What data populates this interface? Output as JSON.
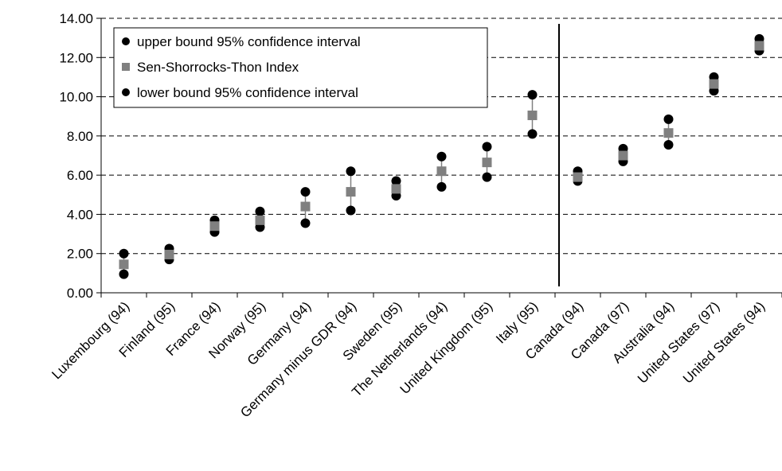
{
  "chart_data": {
    "type": "scatter",
    "categories": [
      "Luxembourg (94)",
      "Finland (95)",
      "France (94)",
      "Norway (95)",
      "Germany (94)",
      "Germany minus GDR (94)",
      "Sweden (95)",
      "The Netherlands (94)",
      "United Kingdom (95)",
      "Italy (95)",
      "Canada (94)",
      "Canada (97)",
      "Australia (94)",
      "United States (97)",
      "United States (94)"
    ],
    "series": [
      {
        "name": "upper bound 95% confidence interval",
        "color": "#000000",
        "marker": "circle",
        "values": [
          2.0,
          2.25,
          3.7,
          4.15,
          5.15,
          6.2,
          5.7,
          6.95,
          7.45,
          10.1,
          6.2,
          7.35,
          8.85,
          11.0,
          12.95
        ]
      },
      {
        "name": "Sen-Shorrocks-Thon Index",
        "color": "#808080",
        "marker": "square",
        "values": [
          1.45,
          1.95,
          3.4,
          3.7,
          4.4,
          5.15,
          5.3,
          6.2,
          6.65,
          9.05,
          5.9,
          7.0,
          8.15,
          10.65,
          12.6
        ]
      },
      {
        "name": "lower bound 95% confidence interval",
        "color": "#000000",
        "marker": "circle",
        "values": [
          0.95,
          1.7,
          3.1,
          3.35,
          3.55,
          4.2,
          4.95,
          5.4,
          5.9,
          8.1,
          5.7,
          6.7,
          7.55,
          10.3,
          12.35
        ]
      }
    ],
    "ylim": [
      0,
      14
    ],
    "yticks": [
      {
        "value": 0,
        "label": "0.00"
      },
      {
        "value": 2,
        "label": "2.00"
      },
      {
        "value": 4,
        "label": "4.00"
      },
      {
        "value": 6,
        "label": "6.00"
      },
      {
        "value": 8,
        "label": "8.00"
      },
      {
        "value": 10,
        "label": "10.00"
      },
      {
        "value": 12,
        "label": "12.00"
      },
      {
        "value": 14,
        "label": "14.00"
      }
    ],
    "grid": true,
    "legend": "upper-left"
  }
}
